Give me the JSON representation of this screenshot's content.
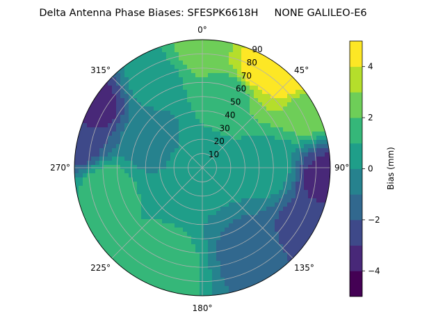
{
  "chart_data": {
    "type": "polar-contourf",
    "title": "Delta Antenna Phase Biases: SFESPK6618H     NONE GALILEO-E6",
    "theta_direction": "clockwise",
    "theta_zero_location": "north",
    "theta_tick_labels": [
      {
        "deg": 0,
        "label": "0°"
      },
      {
        "deg": 45,
        "label": "45°"
      },
      {
        "deg": 90,
        "label": "90°"
      },
      {
        "deg": 135,
        "label": "135°"
      },
      {
        "deg": 180,
        "label": "180°"
      },
      {
        "deg": 225,
        "label": "225°"
      },
      {
        "deg": 270,
        "label": "270°"
      },
      {
        "deg": 315,
        "label": "315°"
      }
    ],
    "radial_axis": {
      "label": "",
      "range": [
        0,
        90
      ],
      "ticks": [
        10,
        20,
        30,
        40,
        50,
        60,
        70,
        80,
        90
      ],
      "tick_labels": [
        "10",
        "20",
        "30",
        "40",
        "50",
        "60",
        "70",
        "80",
        "90"
      ],
      "label_angle_deg": 22.5
    },
    "grid": true,
    "colorbar": {
      "label": "Bias (mm)",
      "levels": [
        -5,
        -4,
        -3,
        -2,
        -1,
        0,
        1,
        2,
        3,
        4,
        5
      ],
      "colors": [
        "#440154",
        "#482878",
        "#3e4989",
        "#31688e",
        "#26828e",
        "#1f9e89",
        "#35b779",
        "#6ece58",
        "#b5de2b",
        "#fde725"
      ],
      "ticks": [
        -4,
        -2,
        0,
        2,
        4
      ],
      "tick_labels": [
        "−4",
        "−2",
        "0",
        "2",
        "4"
      ]
    },
    "field_samples": [
      {
        "azimuth_deg": 0,
        "zenith_deg": 85,
        "value": 2.5
      },
      {
        "azimuth_deg": 30,
        "zenith_deg": 80,
        "value": 4.5
      },
      {
        "azimuth_deg": 45,
        "zenith_deg": 88,
        "value": 4.5
      },
      {
        "azimuth_deg": 60,
        "zenith_deg": 85,
        "value": 2.5
      },
      {
        "azimuth_deg": 20,
        "zenith_deg": 55,
        "value": 1.5
      },
      {
        "azimuth_deg": 330,
        "zenith_deg": 70,
        "value": 0.5
      },
      {
        "azimuth_deg": 300,
        "zenith_deg": 87,
        "value": -3.5
      },
      {
        "azimuth_deg": 280,
        "zenith_deg": 87,
        "value": -2.5
      },
      {
        "azimuth_deg": 300,
        "zenith_deg": 45,
        "value": -0.5
      },
      {
        "azimuth_deg": 260,
        "zenith_deg": 70,
        "value": 1.5
      },
      {
        "azimuth_deg": 200,
        "zenith_deg": 75,
        "value": 1.5
      },
      {
        "azimuth_deg": 150,
        "zenith_deg": 70,
        "value": -1.5
      },
      {
        "azimuth_deg": 120,
        "zenith_deg": 85,
        "value": -2.5
      },
      {
        "azimuth_deg": 95,
        "zenith_deg": 88,
        "value": -3.5
      },
      {
        "azimuth_deg": 90,
        "zenith_deg": 45,
        "value": 0.5
      },
      {
        "azimuth_deg": 0,
        "zenith_deg": 0,
        "value": 0.5
      }
    ]
  }
}
